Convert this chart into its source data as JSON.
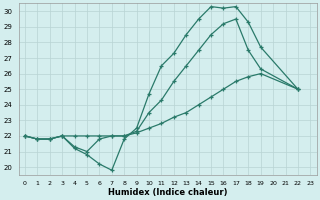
{
  "xlabel": "Humidex (Indice chaleur)",
  "background_color": "#d4eeee",
  "grid_color": "#b8d4d4",
  "line_color": "#2a7a6a",
  "xlim": [
    -0.5,
    23.5
  ],
  "ylim": [
    19.5,
    30.5
  ],
  "xticks": [
    0,
    1,
    2,
    3,
    4,
    5,
    6,
    7,
    8,
    9,
    10,
    11,
    12,
    13,
    14,
    15,
    16,
    17,
    18,
    19,
    20,
    21,
    22,
    23
  ],
  "yticks": [
    20,
    21,
    22,
    23,
    24,
    25,
    26,
    27,
    28,
    29,
    30
  ],
  "series1_x": [
    0,
    1,
    2,
    3,
    4,
    5,
    6,
    7,
    8,
    9,
    10,
    11,
    12,
    13,
    14,
    15,
    16,
    17,
    18,
    19,
    22
  ],
  "series1_y": [
    22,
    21.8,
    21.8,
    22,
    21.2,
    20.8,
    20.2,
    19.8,
    21.8,
    22.5,
    24.7,
    26.5,
    27.3,
    28.5,
    29.5,
    30.3,
    30.2,
    30.3,
    29.3,
    27.7,
    25.0
  ],
  "series2_x": [
    0,
    1,
    2,
    3,
    4,
    5,
    6,
    7,
    8,
    9,
    10,
    11,
    12,
    13,
    14,
    15,
    16,
    17,
    18,
    19,
    22
  ],
  "series2_y": [
    22,
    21.8,
    21.8,
    22,
    21.3,
    21.0,
    21.8,
    22,
    22,
    22.3,
    23.5,
    24.3,
    25.5,
    26.5,
    27.5,
    28.5,
    29.2,
    29.5,
    27.5,
    26.3,
    25.0
  ],
  "series3_x": [
    0,
    1,
    2,
    3,
    4,
    5,
    6,
    7,
    8,
    9,
    10,
    11,
    12,
    13,
    14,
    15,
    16,
    17,
    18,
    19,
    22
  ],
  "series3_y": [
    22,
    21.8,
    21.8,
    22,
    22,
    22,
    22,
    22,
    22,
    22.2,
    22.5,
    22.8,
    23.2,
    23.5,
    24.0,
    24.5,
    25.0,
    25.5,
    25.8,
    26.0,
    25.0
  ]
}
